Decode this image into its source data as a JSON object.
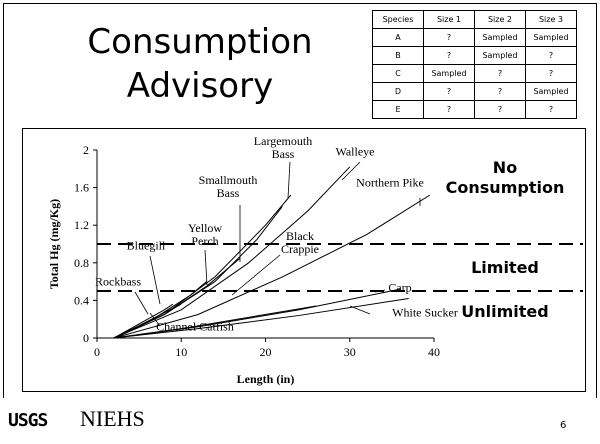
{
  "title": "Consumption Advisory",
  "table": {
    "header": [
      "Species",
      "Size 1",
      "Size 2",
      "Size 3"
    ],
    "rows": [
      [
        "A",
        "?",
        "Sampled",
        "Sampled"
      ],
      [
        "B",
        "?",
        "Sampled",
        "?"
      ],
      [
        "C",
        "Sampled",
        "?",
        "?"
      ],
      [
        "D",
        "?",
        "?",
        "Sampled"
      ],
      [
        "E",
        "?",
        "?",
        "?"
      ]
    ]
  },
  "chart_data": {
    "type": "line",
    "x_label": "Length (in)",
    "y_label": "Total Hg (mg/Kg)",
    "xlim": [
      0,
      40
    ],
    "xticks": [
      0,
      10,
      20,
      30,
      40
    ],
    "ylim": [
      0,
      2
    ],
    "yticks": [
      0,
      0.4,
      0.8,
      1.2,
      1.6,
      2
    ],
    "color": "#000000",
    "thresholds": [
      1,
      0.5
    ],
    "zones": [
      "No Consumption",
      "Limited",
      "Unlimited"
    ],
    "series": [
      {
        "name": "Largemouth Bass",
        "x": [
          2,
          8,
          14,
          20,
          23
        ],
        "values": [
          0,
          0.25,
          0.65,
          1.2,
          1.52
        ]
      },
      {
        "name": "Smallmouth Bass",
        "x": [
          2,
          8,
          14,
          19,
          22
        ],
        "values": [
          0,
          0.25,
          0.6,
          1.05,
          1.4
        ]
      },
      {
        "name": "Walleye",
        "x": [
          2,
          10,
          18,
          25,
          30
        ],
        "values": [
          0,
          0.3,
          0.8,
          1.35,
          1.82
        ]
      },
      {
        "name": "Northern Pike",
        "x": [
          2,
          12,
          22,
          32,
          39.5
        ],
        "values": [
          0,
          0.25,
          0.65,
          1.1,
          1.52
        ]
      },
      {
        "name": "Yellow Perch",
        "x": [
          2,
          7,
          11,
          13
        ],
        "values": [
          0,
          0.22,
          0.45,
          0.6
        ]
      },
      {
        "name": "Black Crappie",
        "x": [
          2,
          8,
          13,
          17
        ],
        "values": [
          0,
          0.25,
          0.55,
          0.85
        ]
      },
      {
        "name": "Bluegill",
        "x": [
          2,
          5,
          8,
          9
        ],
        "values": [
          0,
          0.15,
          0.3,
          0.36
        ]
      },
      {
        "name": "Rockbass",
        "x": [
          2,
          5,
          8,
          10
        ],
        "values": [
          0,
          0.13,
          0.27,
          0.36
        ]
      },
      {
        "name": "Carp",
        "x": [
          2,
          12,
          24,
          36
        ],
        "values": [
          0,
          0.12,
          0.3,
          0.52
        ]
      },
      {
        "name": "White Sucker",
        "x": [
          2,
          12,
          24,
          37
        ],
        "values": [
          0,
          0.1,
          0.24,
          0.42
        ]
      },
      {
        "name": "Channel Catfish",
        "x": [
          2,
          10,
          18,
          26
        ],
        "values": [
          0,
          0.1,
          0.22,
          0.34
        ]
      }
    ]
  },
  "footer": {
    "logos": [
      "USGS",
      "NIEHS"
    ],
    "page_number": "6"
  }
}
